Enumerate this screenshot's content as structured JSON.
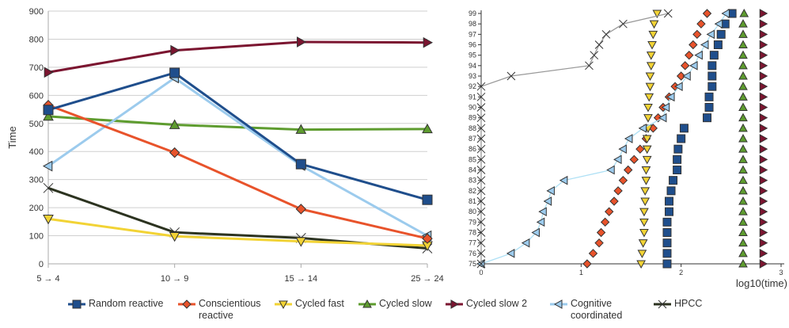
{
  "chart_data": [
    {
      "type": "line",
      "ylabel": "Time",
      "categories": [
        "5 → 4",
        "10 → 9",
        "15 → 14",
        "25 → 24"
      ],
      "ylim": [
        0,
        900
      ],
      "yticks": [
        0,
        100,
        200,
        300,
        400,
        500,
        600,
        700,
        800,
        900
      ],
      "grid": true,
      "series": [
        {
          "name": "Random reactive",
          "color": "#1f4e8c",
          "marker": "square",
          "values": [
            548,
            680,
            355,
            228
          ]
        },
        {
          "name": "Conscientious reactive",
          "color": "#e8532b",
          "marker": "diamond",
          "values": [
            565,
            396,
            195,
            90
          ]
        },
        {
          "name": "Cycled fast",
          "color": "#f2d335",
          "marker": "triangle-down",
          "values": [
            160,
            98,
            80,
            65
          ]
        },
        {
          "name": "Cycled slow",
          "color": "#5e9c2f",
          "marker": "triangle-up",
          "values": [
            525,
            495,
            478,
            480
          ]
        },
        {
          "name": "Cycled slow 2",
          "color": "#7b1530",
          "marker": "triangle-right",
          "values": [
            682,
            760,
            790,
            788
          ]
        },
        {
          "name": "Cognitive coordinated",
          "color": "#9ccbed",
          "marker": "triangle-left",
          "values": [
            348,
            662,
            350,
            100
          ]
        },
        {
          "name": "HPCC",
          "color": "#2c3320",
          "marker": "bowtie",
          "values": [
            270,
            112,
            92,
            55
          ]
        }
      ]
    },
    {
      "type": "scatter",
      "xlabel": "log10(time)",
      "xlim": [
        0,
        3
      ],
      "xticks": [
        0,
        1,
        2,
        3
      ],
      "ylim": [
        75,
        99
      ],
      "yticks": [
        75,
        76,
        77,
        78,
        79,
        80,
        81,
        82,
        83,
        84,
        85,
        86,
        87,
        88,
        89,
        90,
        91,
        92,
        93,
        94,
        95,
        96,
        97,
        98,
        99
      ],
      "grid": false,
      "series": [
        {
          "name": "Random reactive",
          "points": [
            [
              1.86,
              75
            ],
            [
              1.86,
              76
            ],
            [
              1.86,
              77
            ],
            [
              1.86,
              78
            ],
            [
              1.86,
              79
            ],
            [
              1.88,
              80
            ],
            [
              1.88,
              81
            ],
            [
              1.9,
              82
            ],
            [
              1.92,
              83
            ],
            [
              1.96,
              84
            ],
            [
              1.96,
              85
            ],
            [
              1.97,
              86
            ],
            [
              2.0,
              87
            ],
            [
              2.03,
              88
            ],
            [
              2.26,
              89
            ],
            [
              2.28,
              90
            ],
            [
              2.28,
              91
            ],
            [
              2.31,
              92
            ],
            [
              2.31,
              93
            ],
            [
              2.31,
              94
            ],
            [
              2.33,
              95
            ],
            [
              2.37,
              96
            ],
            [
              2.4,
              97
            ],
            [
              2.44,
              98
            ],
            [
              2.51,
              99
            ]
          ]
        },
        {
          "name": "Conscientious reactive",
          "points": [
            [
              1.06,
              75
            ],
            [
              1.12,
              76
            ],
            [
              1.18,
              77
            ],
            [
              1.2,
              78
            ],
            [
              1.24,
              79
            ],
            [
              1.28,
              80
            ],
            [
              1.33,
              81
            ],
            [
              1.37,
              82
            ],
            [
              1.42,
              83
            ],
            [
              1.47,
              84
            ],
            [
              1.53,
              85
            ],
            [
              1.59,
              86
            ],
            [
              1.65,
              87
            ],
            [
              1.72,
              88
            ],
            [
              1.77,
              89
            ],
            [
              1.82,
              90
            ],
            [
              1.88,
              91
            ],
            [
              1.94,
              92
            ],
            [
              2.0,
              93
            ],
            [
              2.04,
              94
            ],
            [
              2.08,
              95
            ],
            [
              2.12,
              96
            ],
            [
              2.16,
              97
            ],
            [
              2.2,
              98
            ],
            [
              2.26,
              99
            ]
          ]
        },
        {
          "name": "Cycled fast",
          "points": [
            [
              1.6,
              75
            ],
            [
              1.61,
              76
            ],
            [
              1.62,
              77
            ],
            [
              1.63,
              78
            ],
            [
              1.63,
              79
            ],
            [
              1.63,
              80
            ],
            [
              1.64,
              81
            ],
            [
              1.64,
              82
            ],
            [
              1.65,
              83
            ],
            [
              1.65,
              84
            ],
            [
              1.66,
              85
            ],
            [
              1.66,
              86
            ],
            [
              1.66,
              87
            ],
            [
              1.67,
              88
            ],
            [
              1.67,
              89
            ],
            [
              1.67,
              90
            ],
            [
              1.68,
              91
            ],
            [
              1.69,
              92
            ],
            [
              1.69,
              93
            ],
            [
              1.7,
              94
            ],
            [
              1.7,
              95
            ],
            [
              1.71,
              96
            ],
            [
              1.72,
              97
            ],
            [
              1.73,
              98
            ],
            [
              1.76,
              99
            ]
          ]
        },
        {
          "name": "Cycled slow",
          "points": [
            [
              2.62,
              75
            ],
            [
              2.62,
              76
            ],
            [
              2.62,
              77
            ],
            [
              2.62,
              78
            ],
            [
              2.62,
              79
            ],
            [
              2.62,
              80
            ],
            [
              2.62,
              81
            ],
            [
              2.62,
              82
            ],
            [
              2.62,
              83
            ],
            [
              2.62,
              84
            ],
            [
              2.62,
              85
            ],
            [
              2.62,
              86
            ],
            [
              2.62,
              87
            ],
            [
              2.62,
              88
            ],
            [
              2.62,
              89
            ],
            [
              2.62,
              90
            ],
            [
              2.62,
              91
            ],
            [
              2.62,
              92
            ],
            [
              2.62,
              93
            ],
            [
              2.62,
              94
            ],
            [
              2.62,
              95
            ],
            [
              2.62,
              96
            ],
            [
              2.62,
              97
            ],
            [
              2.62,
              98
            ],
            [
              2.63,
              99
            ]
          ]
        },
        {
          "name": "Cycled slow 2",
          "points": [
            [
              2.82,
              75
            ],
            [
              2.82,
              76
            ],
            [
              2.82,
              77
            ],
            [
              2.82,
              78
            ],
            [
              2.82,
              79
            ],
            [
              2.82,
              80
            ],
            [
              2.82,
              81
            ],
            [
              2.82,
              82
            ],
            [
              2.82,
              83
            ],
            [
              2.82,
              84
            ],
            [
              2.82,
              85
            ],
            [
              2.82,
              86
            ],
            [
              2.82,
              87
            ],
            [
              2.82,
              88
            ],
            [
              2.82,
              89
            ],
            [
              2.82,
              90
            ],
            [
              2.82,
              91
            ],
            [
              2.82,
              92
            ],
            [
              2.82,
              93
            ],
            [
              2.82,
              94
            ],
            [
              2.82,
              95
            ],
            [
              2.82,
              96
            ],
            [
              2.82,
              97
            ],
            [
              2.82,
              98
            ],
            [
              2.82,
              99
            ]
          ]
        },
        {
          "name": "Cognitive coordinated",
          "points": [
            [
              0.0,
              75
            ],
            [
              0.3,
              76
            ],
            [
              0.45,
              77
            ],
            [
              0.55,
              78
            ],
            [
              0.6,
              79
            ],
            [
              0.62,
              80
            ],
            [
              0.67,
              81
            ],
            [
              0.7,
              82
            ],
            [
              0.83,
              83
            ],
            [
              1.3,
              84
            ],
            [
              1.37,
              85
            ],
            [
              1.42,
              86
            ],
            [
              1.48,
              87
            ],
            [
              1.62,
              88
            ],
            [
              1.82,
              89
            ],
            [
              1.85,
              90
            ],
            [
              1.9,
              91
            ],
            [
              1.98,
              92
            ],
            [
              2.06,
              93
            ],
            [
              2.13,
              94
            ],
            [
              2.18,
              95
            ],
            [
              2.24,
              96
            ],
            [
              2.3,
              97
            ],
            [
              2.38,
              98
            ],
            [
              2.45,
              99
            ]
          ]
        },
        {
          "name": "HPCC",
          "points": [
            [
              0.0,
              75
            ],
            [
              0.0,
              76
            ],
            [
              0.0,
              77
            ],
            [
              0.0,
              78
            ],
            [
              0.0,
              79
            ],
            [
              0.0,
              80
            ],
            [
              0.0,
              81
            ],
            [
              0.0,
              82
            ],
            [
              0.0,
              83
            ],
            [
              0.0,
              84
            ],
            [
              0.0,
              85
            ],
            [
              0.0,
              86
            ],
            [
              0.0,
              87
            ],
            [
              0.0,
              88
            ],
            [
              0.0,
              89
            ],
            [
              0.0,
              90
            ],
            [
              0.0,
              91
            ],
            [
              0.0,
              92
            ],
            [
              0.3,
              93
            ],
            [
              1.08,
              94
            ],
            [
              1.13,
              95
            ],
            [
              1.18,
              96
            ],
            [
              1.25,
              97
            ],
            [
              1.42,
              98
            ],
            [
              1.87,
              99
            ]
          ]
        }
      ]
    }
  ]
}
